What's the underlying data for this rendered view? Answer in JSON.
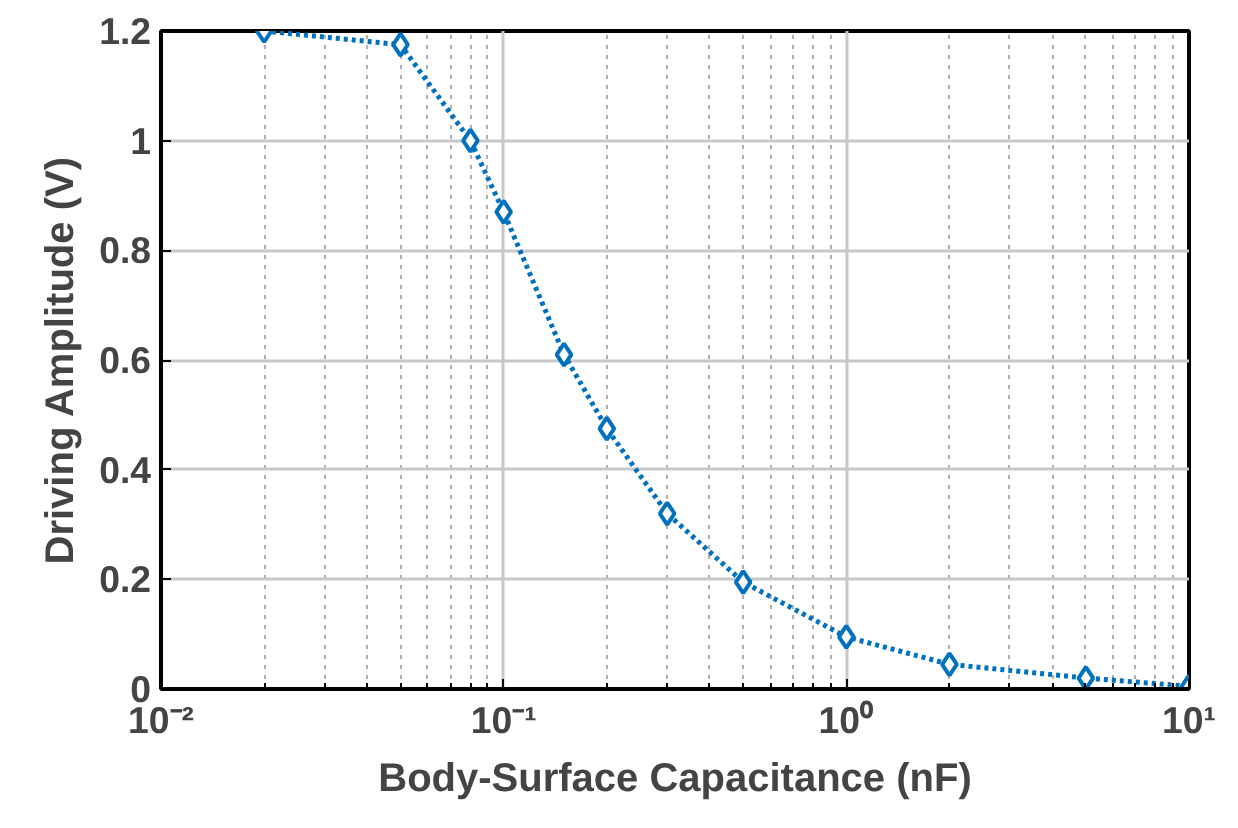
{
  "chart_data": {
    "type": "line",
    "xlabel": "Body-Surface Capacitance (nF)",
    "ylabel": "Driving Amplitude (V)",
    "x": [
      0.02,
      0.05,
      0.08,
      0.1,
      0.15,
      0.2,
      0.3,
      0.5,
      1,
      2,
      5,
      10
    ],
    "series": [
      {
        "color": "#0072bd",
        "values": [
          1.2,
          1.175,
          1.0,
          0.87,
          0.61,
          0.475,
          0.32,
          0.195,
          0.095,
          0.045,
          0.02,
          0.005
        ]
      }
    ],
    "log": "x",
    "xlim": [
      0.01,
      10
    ],
    "xticks": [
      {
        "value": 0.01,
        "label": "10⁻²"
      },
      {
        "value": 0.1,
        "label": "10⁻¹"
      },
      {
        "value": 1,
        "label": "10⁰"
      },
      {
        "value": 10,
        "label": "10¹"
      }
    ],
    "ylim": [
      0,
      1.2
    ],
    "yticks": [
      0,
      0.2,
      0.4,
      0.6,
      0.8,
      1,
      1.2
    ],
    "grid": true,
    "marker": "diamond",
    "line_style": "dotted"
  }
}
